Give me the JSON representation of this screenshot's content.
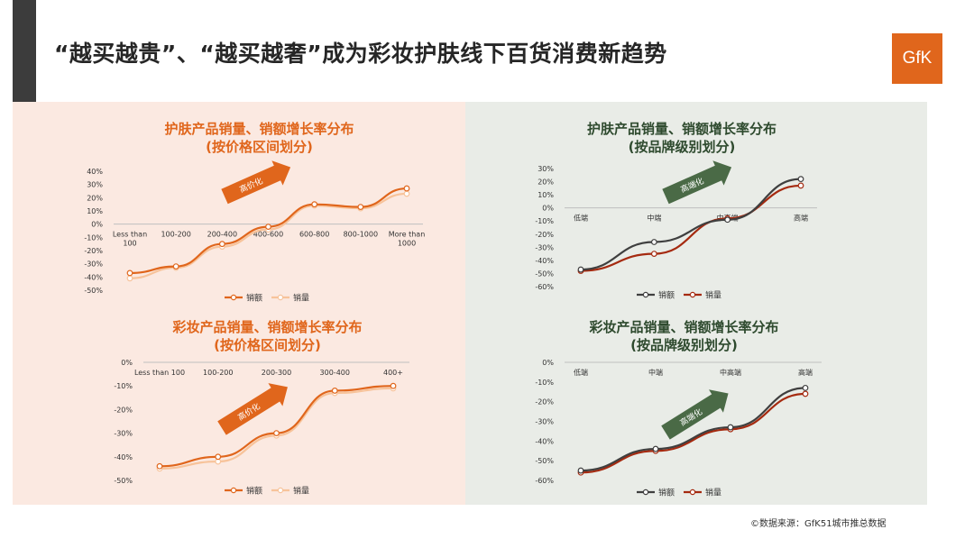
{
  "page": {
    "title": "“越买越贵”、“越买越奢”成为彩妆护肤线下百货消费新趋势",
    "logo_text": "GfK",
    "source": "©数据来源：GfK51城市推总数据",
    "colors": {
      "left_panel_bg": "#fbe9e1",
      "right_panel_bg": "#e9ece7",
      "accent": "#e0661c"
    }
  },
  "chart_data": [
    {
      "type": "line",
      "title": "护肤产品销量、销额增长率分布",
      "subtitle": "(按价格区间划分)",
      "categories": [
        "Less than 100",
        "100-200",
        "200-400",
        "400-600",
        "600-800",
        "800-1000",
        "More than 1000"
      ],
      "series": [
        {
          "name": "销额",
          "values": [
            -37,
            -32,
            -15,
            -2,
            15,
            13,
            27
          ],
          "color": "#e0661c"
        },
        {
          "name": "销量",
          "values": [
            -41,
            -33,
            -17,
            -4,
            14,
            12,
            23
          ],
          "color": "#f7c39a"
        }
      ],
      "yticks": [
        40,
        30,
        20,
        10,
        0,
        -10,
        -20,
        -30,
        -40,
        -50
      ],
      "ylim": [
        -50,
        40
      ],
      "annotation": "高价化",
      "legend": "bottom"
    },
    {
      "type": "line",
      "title": "护肤产品销量、销额增长率分布",
      "subtitle": "(按品牌级别划分)",
      "categories": [
        "低端",
        "中端",
        "中高端",
        "高端"
      ],
      "series": [
        {
          "name": "销额",
          "values": [
            -47,
            -26,
            -9,
            22
          ],
          "color": "#3f3f3f"
        },
        {
          "name": "销量",
          "values": [
            -48,
            -35,
            -8,
            17
          ],
          "color": "#a52a10"
        }
      ],
      "yticks": [
        30,
        20,
        10,
        0,
        -10,
        -20,
        -30,
        -40,
        -50,
        -60
      ],
      "ylim": [
        -60,
        30
      ],
      "annotation": "高端化",
      "legend": "bottom"
    },
    {
      "type": "line",
      "title": "彩妆产品销量、销额增长率分布",
      "subtitle": "(按价格区间划分)",
      "categories": [
        "Less than 100",
        "100-200",
        "200-300",
        "300-400",
        "400+"
      ],
      "series": [
        {
          "name": "销额",
          "values": [
            -44,
            -40,
            -30,
            -12,
            -10
          ],
          "color": "#e0661c"
        },
        {
          "name": "销量",
          "values": [
            -45,
            -42,
            -31,
            -13,
            -11
          ],
          "color": "#f7c39a"
        }
      ],
      "yticks": [
        0,
        -10,
        -20,
        -30,
        -40,
        -50
      ],
      "ylim": [
        -50,
        0
      ],
      "annotation": "高价化",
      "legend": "bottom"
    },
    {
      "type": "line",
      "title": "彩妆产品销量、销额增长率分布",
      "subtitle": "(按品牌级别划分)",
      "categories": [
        "低端",
        "中端",
        "中高端",
        "高端"
      ],
      "series": [
        {
          "name": "销额",
          "values": [
            -55,
            -44,
            -33,
            -13
          ],
          "color": "#3f3f3f"
        },
        {
          "name": "销量",
          "values": [
            -56,
            -45,
            -34,
            -16
          ],
          "color": "#a52a10"
        }
      ],
      "yticks": [
        0,
        -10,
        -20,
        -30,
        -40,
        -50,
        -60
      ],
      "ylim": [
        -60,
        0
      ],
      "annotation": "高端化",
      "legend": "bottom"
    }
  ]
}
